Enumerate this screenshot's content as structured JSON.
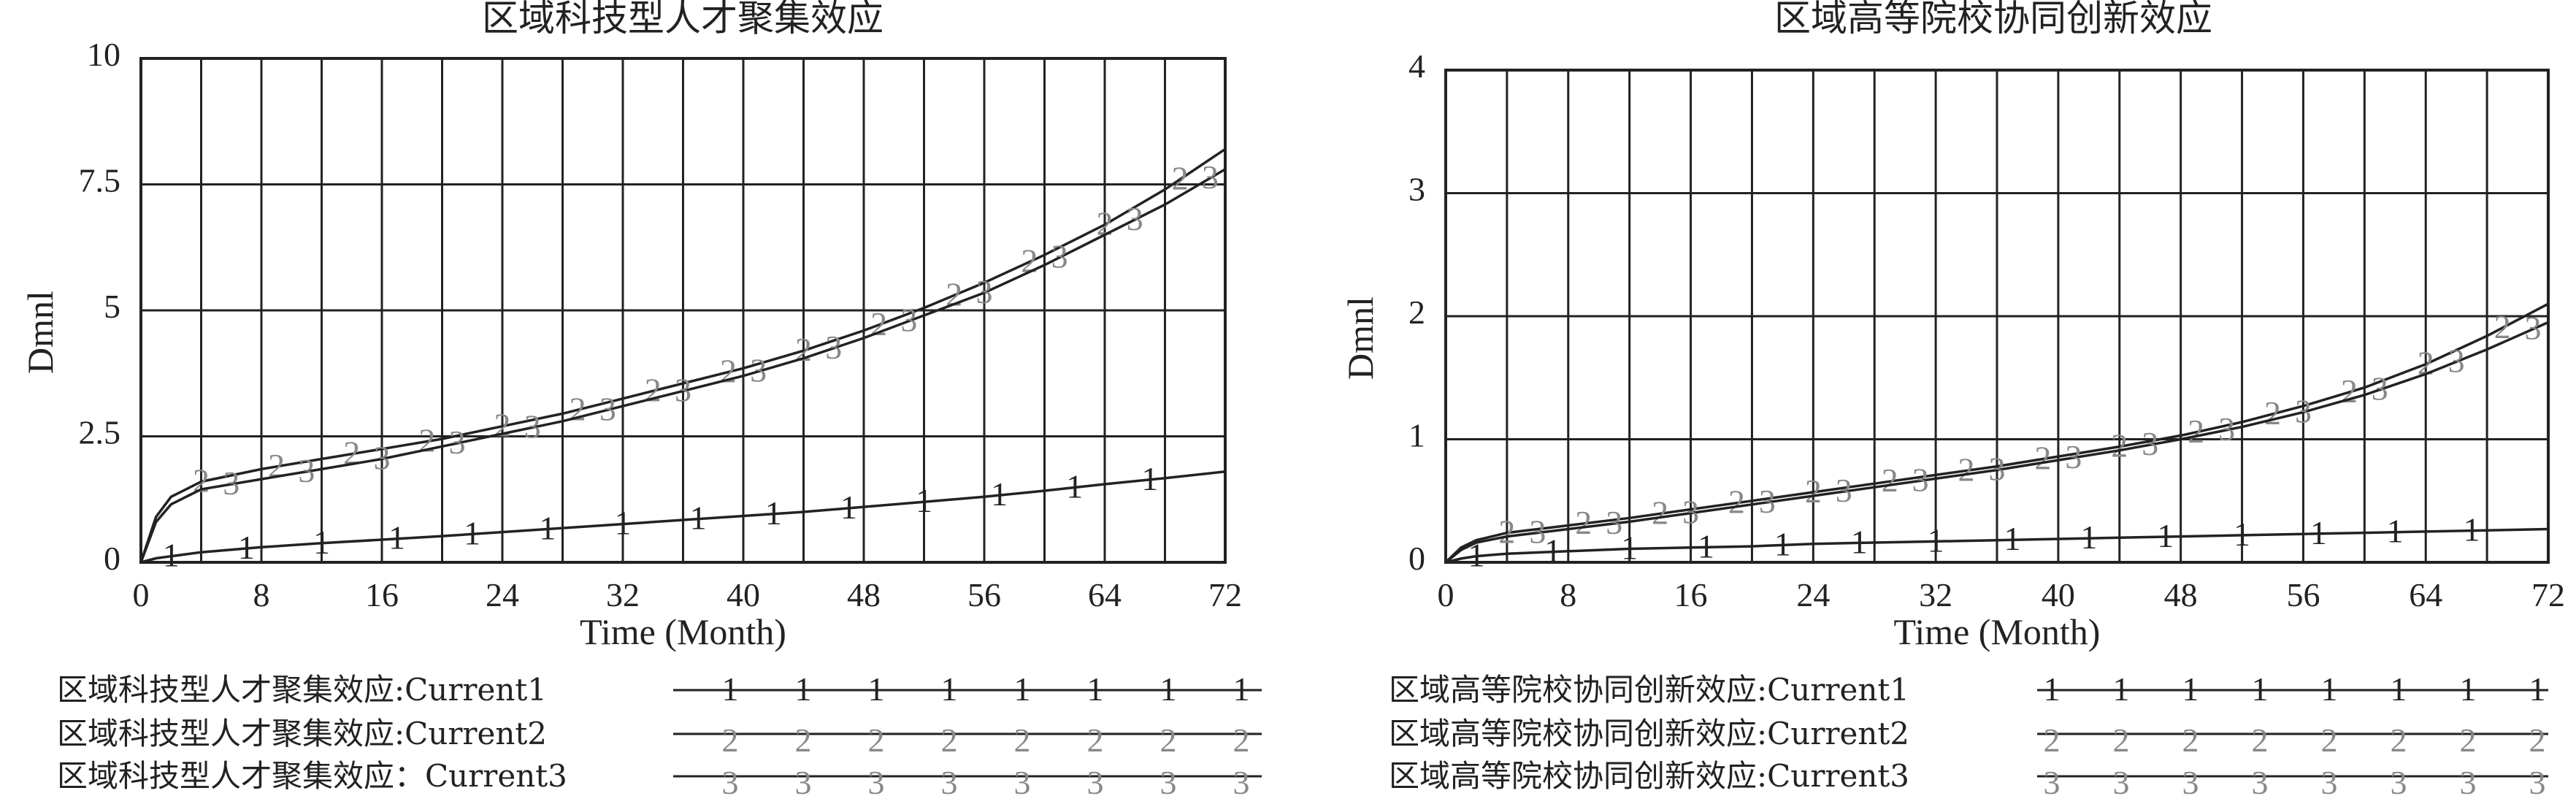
{
  "chart_data": [
    {
      "type": "line",
      "title": "区域科技型人才聚集效应",
      "xlabel": "Time (Month)",
      "ylabel": "Dmnl",
      "xlim": [
        0,
        72
      ],
      "ylim": [
        0,
        10
      ],
      "x_ticks": [
        "0",
        "8",
        "16",
        "24",
        "32",
        "40",
        "48",
        "56",
        "64",
        "72"
      ],
      "y_ticks": [
        "0",
        "2.5",
        "5",
        "7.5",
        "10"
      ],
      "x_step": 4,
      "y_step": 2.5,
      "grid": true,
      "legend_position": "bottom",
      "x": [
        0,
        1,
        2,
        4,
        8,
        12,
        16,
        20,
        24,
        28,
        32,
        36,
        40,
        44,
        48,
        52,
        56,
        60,
        64,
        68,
        72
      ],
      "series": [
        {
          "name": "区域科技型人才聚集效应:Current1",
          "marker": "1",
          "color": "#222222",
          "values": [
            0,
            0.08,
            0.12,
            0.2,
            0.3,
            0.38,
            0.45,
            0.52,
            0.6,
            0.68,
            0.76,
            0.84,
            0.92,
            1.0,
            1.1,
            1.2,
            1.3,
            1.42,
            1.55,
            1.67,
            1.8
          ]
        },
        {
          "name": "区域科技型人才聚集效应:Current2",
          "marker": "2",
          "color": "#888888",
          "values": [
            0,
            0.9,
            1.3,
            1.6,
            1.85,
            2.05,
            2.25,
            2.45,
            2.7,
            2.95,
            3.25,
            3.55,
            3.85,
            4.2,
            4.6,
            5.05,
            5.55,
            6.1,
            6.7,
            7.4,
            8.2
          ]
        },
        {
          "name": "区域科技型人才聚集效应：Current3",
          "marker": "3",
          "color": "#888888",
          "values": [
            0,
            0.8,
            1.15,
            1.45,
            1.65,
            1.85,
            2.05,
            2.3,
            2.55,
            2.8,
            3.1,
            3.4,
            3.7,
            4.05,
            4.45,
            4.9,
            5.35,
            5.9,
            6.5,
            7.1,
            7.8
          ]
        }
      ]
    },
    {
      "type": "line",
      "title": "区域高等院校协同创新效应",
      "xlabel": "Time (Month)",
      "ylabel": "Dmnl",
      "xlim": [
        0,
        72
      ],
      "ylim": [
        0,
        4
      ],
      "x_ticks": [
        "0",
        "8",
        "16",
        "24",
        "32",
        "40",
        "48",
        "56",
        "64",
        "72"
      ],
      "y_ticks": [
        "0",
        "1",
        "2",
        "3",
        "4"
      ],
      "x_step": 4,
      "y_step": 1,
      "grid": true,
      "legend_position": "bottom",
      "x": [
        0,
        1,
        2,
        4,
        8,
        12,
        16,
        20,
        24,
        28,
        32,
        36,
        40,
        44,
        48,
        52,
        56,
        60,
        64,
        68,
        72
      ],
      "series": [
        {
          "name": "区域高等院校协同创新效应:Current1",
          "marker": "1",
          "color": "#222222",
          "values": [
            0,
            0.03,
            0.05,
            0.07,
            0.09,
            0.11,
            0.12,
            0.13,
            0.15,
            0.16,
            0.17,
            0.18,
            0.19,
            0.2,
            0.21,
            0.22,
            0.23,
            0.24,
            0.25,
            0.26,
            0.27
          ]
        },
        {
          "name": "区域高等院校协同创新效应:Current2",
          "marker": "2",
          "color": "#888888",
          "values": [
            0,
            0.12,
            0.18,
            0.24,
            0.3,
            0.36,
            0.43,
            0.5,
            0.57,
            0.64,
            0.71,
            0.78,
            0.86,
            0.94,
            1.03,
            1.14,
            1.27,
            1.42,
            1.61,
            1.84,
            2.1
          ]
        },
        {
          "name": "区域高等院校协同创新效应:Current3",
          "marker": "3",
          "color": "#888888",
          "values": [
            0,
            0.1,
            0.16,
            0.21,
            0.27,
            0.33,
            0.4,
            0.47,
            0.54,
            0.61,
            0.68,
            0.75,
            0.83,
            0.91,
            1.0,
            1.1,
            1.22,
            1.36,
            1.53,
            1.73,
            1.95
          ]
        }
      ]
    }
  ]
}
